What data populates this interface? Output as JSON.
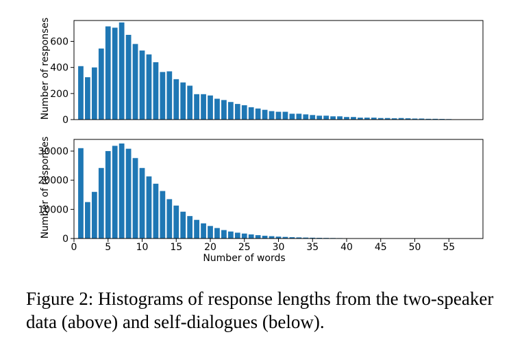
{
  "chart_data": [
    {
      "type": "bar",
      "xlabel": "",
      "ylabel": "Number of responses",
      "xlim": [
        0,
        60
      ],
      "ylim": [
        0,
        760
      ],
      "yticks": [
        0,
        200,
        400,
        600
      ],
      "xticks": [],
      "color": "#1f77b4",
      "x": [
        1,
        2,
        3,
        4,
        5,
        6,
        7,
        8,
        9,
        10,
        11,
        12,
        13,
        14,
        15,
        16,
        17,
        18,
        19,
        20,
        21,
        22,
        23,
        24,
        25,
        26,
        27,
        28,
        29,
        30,
        31,
        32,
        33,
        34,
        35,
        36,
        37,
        38,
        39,
        40,
        41,
        42,
        43,
        44,
        45,
        46,
        47,
        48,
        49,
        50,
        51,
        52,
        53,
        54,
        55
      ],
      "values": [
        410,
        325,
        400,
        545,
        715,
        705,
        745,
        650,
        580,
        530,
        500,
        440,
        365,
        370,
        310,
        285,
        260,
        195,
        195,
        185,
        160,
        150,
        135,
        120,
        110,
        95,
        85,
        75,
        65,
        60,
        60,
        45,
        45,
        40,
        35,
        30,
        30,
        25,
        25,
        20,
        20,
        15,
        15,
        15,
        12,
        12,
        10,
        12,
        10,
        8,
        8,
        6,
        6,
        5,
        4
      ]
    },
    {
      "type": "bar",
      "xlabel": "Number of words",
      "ylabel": "Number of responses",
      "xlim": [
        0,
        60
      ],
      "ylim": [
        0,
        34000
      ],
      "yticks": [
        0,
        10000,
        20000,
        30000
      ],
      "xticks": [
        0,
        5,
        10,
        15,
        20,
        25,
        30,
        35,
        40,
        45,
        50,
        55
      ],
      "color": "#1f77b4",
      "x": [
        1,
        2,
        3,
        4,
        5,
        6,
        7,
        8,
        9,
        10,
        11,
        12,
        13,
        14,
        15,
        16,
        17,
        18,
        19,
        20,
        21,
        22,
        23,
        24,
        25,
        26,
        27,
        28,
        29,
        30,
        31,
        32,
        33,
        34,
        35,
        36,
        37,
        38,
        39,
        40,
        41,
        42,
        43,
        44,
        45,
        46,
        47,
        48,
        49,
        50,
        51,
        52,
        53,
        54,
        55,
        56,
        57,
        58,
        59
      ],
      "values": [
        31000,
        12500,
        16000,
        24200,
        30000,
        31800,
        32600,
        30800,
        27600,
        24200,
        21300,
        18800,
        16300,
        13500,
        11300,
        9200,
        7700,
        6400,
        5200,
        4300,
        3600,
        2900,
        2400,
        2000,
        1700,
        1400,
        1150,
        950,
        800,
        650,
        550,
        450,
        380,
        320,
        270,
        230,
        200,
        170,
        140,
        120,
        100,
        90,
        80,
        70,
        60,
        55,
        50,
        45,
        40,
        35,
        30,
        28,
        25,
        22,
        20,
        18,
        16,
        14,
        12
      ]
    }
  ],
  "caption": "Figure 2: Histograms of response lengths from the two-speaker data (above) and self-dialogues (below)."
}
